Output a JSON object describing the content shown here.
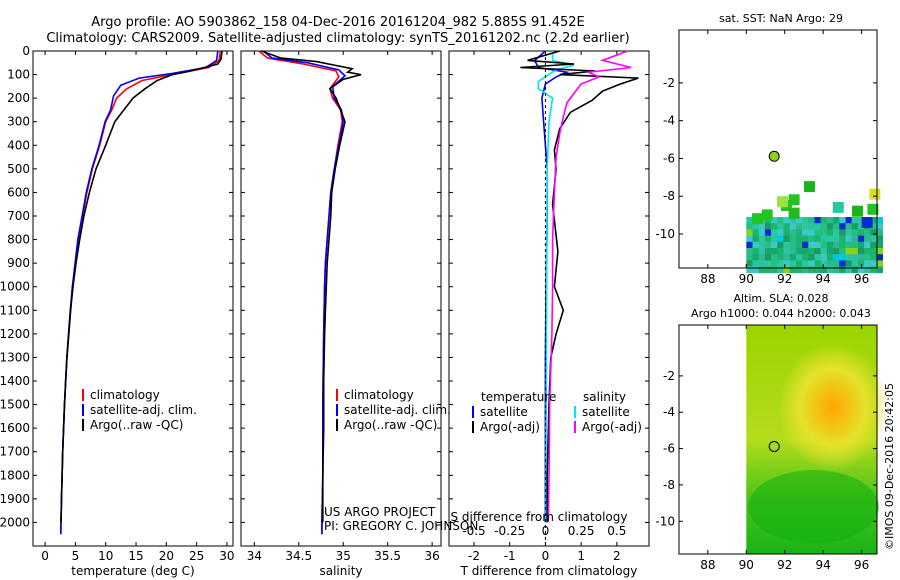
{
  "header": {
    "line1": "Argo profile: AO 5903862_158 04-Dec-2016 20161204_982 5.885S 91.452E",
    "line2": "Climatology: CARS2009. Satellite-adjusted climatology: synTS_20161202.nc (2.2d earlier)"
  },
  "credits": {
    "project": "US ARGO PROJECT",
    "pi": "PI: GREGORY C. JOHNSON",
    "stamp": "©IMOS 09-Dec-2016 20:42:05"
  },
  "colors": {
    "climatology": "#ff0000",
    "satellite": "#0000ff",
    "argo": "#000000",
    "satellite_s": "#00e5ee",
    "argo_s": "#ff00ff"
  },
  "chart_data": [
    {
      "id": "temperature",
      "type": "line",
      "xlabel": "temperature (deg C)",
      "ylabel": "",
      "xlim": [
        -2,
        31
      ],
      "ylim": [
        2100,
        0
      ],
      "xticks": [
        0,
        5,
        10,
        15,
        20,
        25,
        30
      ],
      "yticks": [
        0,
        100,
        200,
        300,
        400,
        500,
        600,
        700,
        800,
        900,
        1000,
        1100,
        1200,
        1300,
        1400,
        1500,
        1600,
        1700,
        1800,
        1900,
        2000
      ],
      "legend": [
        "climatology",
        "satellite-adj. clim.",
        "Argo(..raw -QC)"
      ],
      "series": [
        {
          "name": "climatology",
          "color": "#ff0000",
          "points": [
            [
              28.9,
              0
            ],
            [
              28.7,
              40
            ],
            [
              27,
              70
            ],
            [
              22,
              95
            ],
            [
              16,
              125
            ],
            [
              13.5,
              160
            ],
            [
              11.8,
              200
            ],
            [
              11,
              250
            ],
            [
              10,
              300
            ],
            [
              9,
              400
            ],
            [
              7.8,
              500
            ],
            [
              6.9,
              600
            ],
            [
              6.2,
              700
            ],
            [
              5.5,
              800
            ],
            [
              5,
              900
            ],
            [
              4.5,
              1000
            ],
            [
              4.2,
              1100
            ],
            [
              3.9,
              1200
            ],
            [
              3.6,
              1300
            ],
            [
              3.4,
              1400
            ],
            [
              3.2,
              1500
            ],
            [
              3.05,
              1600
            ],
            [
              2.9,
              1700
            ],
            [
              2.8,
              1800
            ],
            [
              2.7,
              1900
            ],
            [
              2.62,
              2000
            ],
            [
              2.58,
              2050
            ]
          ]
        },
        {
          "name": "satellite-adj. clim.",
          "color": "#0000ff",
          "points": [
            [
              28.5,
              0
            ],
            [
              28.3,
              40
            ],
            [
              26.5,
              70
            ],
            [
              21,
              95
            ],
            [
              15.5,
              115
            ],
            [
              12.5,
              145
            ],
            [
              11.3,
              190
            ],
            [
              10.8,
              250
            ],
            [
              9.9,
              300
            ],
            [
              8.9,
              400
            ],
            [
              7.7,
              500
            ],
            [
              6.8,
              600
            ],
            [
              6.1,
              700
            ],
            [
              5.4,
              800
            ],
            [
              4.95,
              900
            ],
            [
              4.5,
              1000
            ],
            [
              4.15,
              1100
            ],
            [
              3.85,
              1200
            ],
            [
              3.6,
              1300
            ],
            [
              3.38,
              1400
            ],
            [
              3.2,
              1500
            ],
            [
              3.05,
              1600
            ],
            [
              2.9,
              1700
            ],
            [
              2.8,
              1800
            ],
            [
              2.7,
              1900
            ],
            [
              2.62,
              2000
            ],
            [
              2.58,
              2050
            ]
          ]
        },
        {
          "name": "Argo(..raw -QC)",
          "color": "#000000",
          "points": [
            [
              29.2,
              0
            ],
            [
              29,
              35
            ],
            [
              28.5,
              55
            ],
            [
              24,
              85
            ],
            [
              21,
              100
            ],
            [
              18.5,
              125
            ],
            [
              16.5,
              160
            ],
            [
              14.5,
              200
            ],
            [
              13,
              250
            ],
            [
              11.5,
              300
            ],
            [
              10,
              400
            ],
            [
              8.4,
              500
            ],
            [
              7.3,
              600
            ],
            [
              6.4,
              700
            ],
            [
              5.7,
              800
            ],
            [
              5.1,
              900
            ],
            [
              4.6,
              1000
            ],
            [
              4.2,
              1100
            ],
            [
              3.9,
              1200
            ],
            [
              3.6,
              1300
            ],
            [
              3.4,
              1400
            ],
            [
              3.2,
              1500
            ],
            [
              3.05,
              1600
            ],
            [
              2.9,
              1700
            ],
            [
              2.8,
              1800
            ],
            [
              2.7,
              1900
            ],
            [
              2.62,
              2000
            ]
          ]
        }
      ]
    },
    {
      "id": "salinity",
      "type": "line",
      "xlabel": "salinity",
      "ylabel": "",
      "xlim": [
        33.85,
        36.1
      ],
      "ylim": [
        2100,
        0
      ],
      "xticks": [
        34,
        34.5,
        35,
        35.5,
        36
      ],
      "legend": [
        "climatology",
        "satellite-adj. clim.",
        "Argo(..raw -QC)"
      ],
      "series": [
        {
          "name": "climatology",
          "color": "#ff0000",
          "points": [
            [
              34.05,
              0
            ],
            [
              34.15,
              30
            ],
            [
              34.55,
              55
            ],
            [
              34.92,
              85
            ],
            [
              34.95,
              110
            ],
            [
              34.85,
              160
            ],
            [
              34.88,
              200
            ],
            [
              34.97,
              250
            ],
            [
              34.99,
              300
            ],
            [
              34.94,
              400
            ],
            [
              34.9,
              500
            ],
            [
              34.86,
              600
            ],
            [
              34.84,
              700
            ],
            [
              34.82,
              800
            ],
            [
              34.8,
              900
            ],
            [
              34.79,
              1000
            ],
            [
              34.78,
              1200
            ],
            [
              34.77,
              1500
            ],
            [
              34.77,
              1800
            ],
            [
              34.76,
              2000
            ],
            [
              34.76,
              2050
            ]
          ]
        },
        {
          "name": "satellite-adj. clim.",
          "color": "#0000ff",
          "points": [
            [
              34.1,
              0
            ],
            [
              34.2,
              30
            ],
            [
              34.6,
              50
            ],
            [
              34.95,
              80
            ],
            [
              35.02,
              105
            ],
            [
              34.88,
              150
            ],
            [
              34.9,
              200
            ],
            [
              34.98,
              250
            ],
            [
              35.0,
              300
            ],
            [
              34.95,
              400
            ],
            [
              34.9,
              500
            ],
            [
              34.86,
              600
            ],
            [
              34.84,
              700
            ],
            [
              34.82,
              800
            ],
            [
              34.8,
              900
            ],
            [
              34.79,
              1000
            ],
            [
              34.78,
              1200
            ],
            [
              34.77,
              1500
            ],
            [
              34.77,
              1800
            ],
            [
              34.76,
              2000
            ],
            [
              34.76,
              2050
            ]
          ]
        },
        {
          "name": "Argo(..raw -QC)",
          "color": "#000000",
          "points": [
            [
              34.08,
              0
            ],
            [
              34.3,
              30
            ],
            [
              34.7,
              45
            ],
            [
              34.9,
              60
            ],
            [
              35.1,
              75
            ],
            [
              35.05,
              90
            ],
            [
              35.2,
              100
            ],
            [
              35.0,
              120
            ],
            [
              34.85,
              160
            ],
            [
              34.92,
              200
            ],
            [
              34.97,
              250
            ],
            [
              35.02,
              300
            ],
            [
              34.96,
              400
            ],
            [
              34.91,
              500
            ],
            [
              34.87,
              600
            ],
            [
              34.86,
              700
            ],
            [
              34.84,
              800
            ],
            [
              34.82,
              900
            ],
            [
              34.81,
              1000
            ],
            [
              34.8,
              1100
            ],
            [
              34.79,
              1200
            ],
            [
              34.78,
              1400
            ],
            [
              34.78,
              1600
            ],
            [
              34.77,
              1800
            ],
            [
              34.77,
              2000
            ]
          ]
        }
      ]
    },
    {
      "id": "difference",
      "type": "line",
      "xlabel": "T difference from climatology",
      "top_label": "S difference from climatology",
      "xlim": [
        -2.7,
        2.9
      ],
      "ylim": [
        2100,
        0
      ],
      "xticks": [
        -2,
        -1,
        0,
        1,
        2
      ],
      "top_ticks": [
        {
          "label": "-0.5",
          "x": -2
        },
        {
          "label": "-0.25",
          "x": -1
        },
        {
          "label": "0",
          "x": 0
        },
        {
          "label": "0.25",
          "x": 1
        },
        {
          "label": "0.5",
          "x": 2
        }
      ],
      "legend_titles": [
        "temperature",
        "salinity"
      ],
      "legend": [
        "satellite",
        "Argo(-adj)",
        "satellite",
        "Argo(-adj)"
      ],
      "series": [
        {
          "name": "T satellite",
          "color": "#0000ff",
          "points": [
            [
              0,
              0
            ],
            [
              -0.3,
              40
            ],
            [
              -0.2,
              70
            ],
            [
              0.6,
              90
            ],
            [
              0.3,
              110
            ],
            [
              0,
              140
            ],
            [
              -0.1,
              200
            ],
            [
              -0.05,
              300
            ],
            [
              0.05,
              500
            ],
            [
              0.05,
              700
            ],
            [
              0.02,
              1000
            ],
            [
              0,
              1300
            ],
            [
              0,
              1600
            ],
            [
              0,
              2000
            ]
          ]
        },
        {
          "name": "S satellite",
          "color": "#00e5ee",
          "points": [
            [
              0.2,
              0
            ],
            [
              0.2,
              40
            ],
            [
              0.8,
              60
            ],
            [
              0.3,
              80
            ],
            [
              0.1,
              100
            ],
            [
              -0.2,
              130
            ],
            [
              -0.2,
              160
            ],
            [
              0.2,
              200
            ],
            [
              0.1,
              300
            ],
            [
              0.05,
              500
            ],
            [
              0.04,
              800
            ],
            [
              0.03,
              1200
            ],
            [
              0.02,
              1600
            ],
            [
              0.01,
              2000
            ]
          ]
        },
        {
          "name": "T Argo(-adj)",
          "color": "#000000",
          "points": [
            [
              0.4,
              0
            ],
            [
              -0.5,
              40
            ],
            [
              0.8,
              55
            ],
            [
              -0.7,
              70
            ],
            [
              1.4,
              85
            ],
            [
              0.4,
              100
            ],
            [
              2.6,
              115
            ],
            [
              2.1,
              140
            ],
            [
              1.6,
              170
            ],
            [
              1.3,
              210
            ],
            [
              0.7,
              260
            ],
            [
              0.4,
              330
            ],
            [
              0.25,
              420
            ],
            [
              0.3,
              500
            ],
            [
              0.2,
              650
            ],
            [
              0.35,
              850
            ],
            [
              0.25,
              1000
            ],
            [
              0.5,
              1100
            ],
            [
              0.3,
              1200
            ],
            [
              0.15,
              1300
            ],
            [
              0.1,
              1500
            ],
            [
              0.05,
              1800
            ],
            [
              0.05,
              2000
            ]
          ]
        },
        {
          "name": "S Argo(-adj)",
          "color": "#ff00ff",
          "points": [
            [
              2.3,
              0
            ],
            [
              1.6,
              40
            ],
            [
              2.4,
              70
            ],
            [
              1.2,
              90
            ],
            [
              1.5,
              110
            ],
            [
              1.0,
              140
            ],
            [
              0.8,
              180
            ],
            [
              0.6,
              220
            ],
            [
              0.5,
              280
            ],
            [
              0.4,
              350
            ],
            [
              0.3,
              450
            ],
            [
              0.25,
              600
            ],
            [
              0.2,
              800
            ],
            [
              0.2,
              1000
            ],
            [
              0.18,
              1200
            ],
            [
              0.12,
              1500
            ],
            [
              0.1,
              1800
            ],
            [
              0.08,
              2000
            ]
          ]
        }
      ]
    },
    {
      "id": "sst_map",
      "type": "heatmap",
      "title": "sat. SST: NaN Argo: 29",
      "xlim": [
        86.5,
        96.8
      ],
      "ylim": [
        -11.8,
        0.8
      ],
      "xticks": [
        88,
        90,
        92,
        94,
        96
      ],
      "yticks": [
        -2,
        -4,
        -6,
        -8,
        -10
      ],
      "marker": {
        "lon": 91.452,
        "lat": -5.885
      }
    },
    {
      "id": "sla_map",
      "type": "heatmap",
      "title": "Altim. SLA: 0.028",
      "subtitle": "Argo h1000: 0.044 h2000: 0.043",
      "xlim": [
        86.5,
        96.8
      ],
      "ylim": [
        -11.8,
        0.8
      ],
      "xticks": [
        88,
        90,
        92,
        94,
        96
      ],
      "yticks": [
        -2,
        -4,
        -6,
        -8,
        -10
      ],
      "marker": {
        "lon": 91.452,
        "lat": -5.885
      }
    }
  ]
}
